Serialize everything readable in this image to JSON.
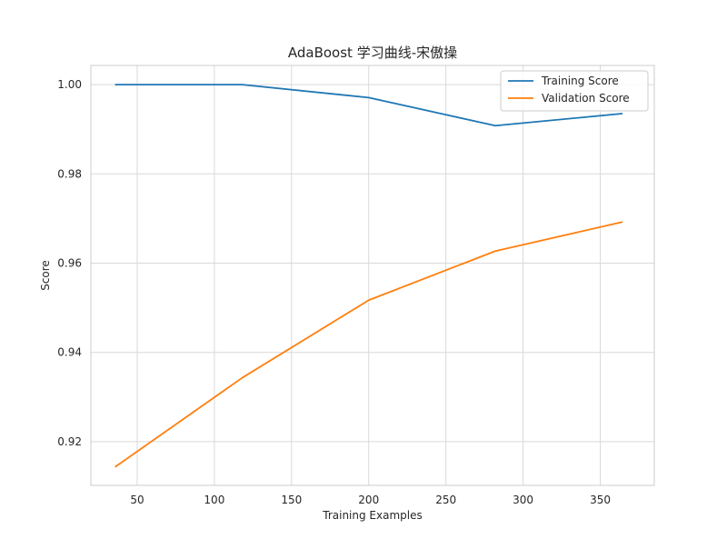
{
  "chart_data": {
    "type": "line",
    "title": "AdaBoost 学习曲线-宋傲操",
    "xlabel": "Training Examples",
    "ylabel": "Score",
    "xlim": [
      20,
      385
    ],
    "ylim": [
      0.9102,
      1.0043
    ],
    "xticks": [
      50,
      100,
      150,
      200,
      250,
      300,
      350
    ],
    "xtick_labels": [
      "50",
      "100",
      "150",
      "200",
      "250",
      "300",
      "350"
    ],
    "yticks": [
      0.92,
      0.94,
      0.96,
      0.98,
      1.0
    ],
    "ytick_labels": [
      "0.92",
      "0.94",
      "0.96",
      "0.98",
      "1.00"
    ],
    "grid": true,
    "legend_position": "top-right",
    "x": [
      36,
      118,
      200,
      282,
      364
    ],
    "series": [
      {
        "name": "Training Score",
        "color": "#1f77b4",
        "values": [
          1.0,
          1.0,
          0.9971,
          0.9908,
          0.9935
        ]
      },
      {
        "name": "Validation Score",
        "color": "#ff7f0e",
        "values": [
          0.9144,
          0.9343,
          0.9517,
          0.9627,
          0.9692
        ]
      }
    ]
  }
}
